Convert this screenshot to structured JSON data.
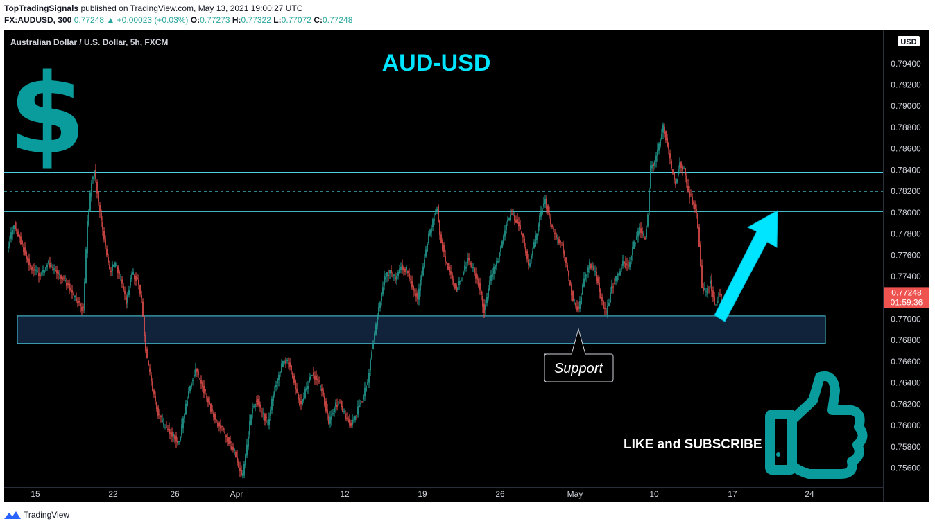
{
  "header": {
    "publisher": "TopTradingSignals",
    "published_text": "published on TradingView.com, May 13, 2021 19:00:27 UTC",
    "symbol": "FX:AUDUSD, 300",
    "last": "0.77248",
    "change_arrow": "▲",
    "change": "+0.00023 (+0.03%)",
    "o_label": "O:",
    "o": "0.77273",
    "h_label": "H:",
    "h": "0.77322",
    "l_label": "L:",
    "l": "0.77072",
    "c_label": "C:",
    "c": "0.77248"
  },
  "footer": {
    "brand": "TradingView"
  },
  "chart_data": {
    "type": "candlestick",
    "title": "AUD-USD",
    "series_label": "Australian Dollar / U.S. Dollar, 5h, FXCM",
    "currency": "USD",
    "price_tag": "0.77248",
    "countdown": "01:59:36",
    "ylim": [
      0.7548,
      0.7962
    ],
    "y_ticks": [
      0.756,
      0.758,
      0.76,
      0.762,
      0.764,
      0.766,
      0.768,
      0.77,
      0.772,
      0.774,
      0.776,
      0.778,
      0.78,
      0.782,
      0.784,
      0.786,
      0.788,
      0.79,
      0.792,
      0.794
    ],
    "y_tick_labels": [
      "0.75600",
      "0.75800",
      "0.76000",
      "0.76200",
      "0.76400",
      "0.76600",
      "0.76800",
      "0.77000",
      "0.77200",
      "0.77400",
      "0.77600",
      "0.77800",
      "0.78000",
      "0.78200",
      "0.78400",
      "0.78600",
      "0.78800",
      "0.79000",
      "0.79200",
      "0.79400"
    ],
    "x_ticks": [
      "15",
      "22",
      "26",
      "Apr",
      "12",
      "19",
      "26",
      "May",
      "10",
      "17",
      "24"
    ],
    "lines": {
      "upper_resistance": 0.7838,
      "mid_dashed": 0.782,
      "lower_resistance": 0.7801
    },
    "support_zone": [
      0.7677,
      0.7703
    ],
    "annotations": {
      "support_label": "Support",
      "cta": "LIKE and SUBSCRIBE"
    },
    "colors": {
      "up": "#26a69a",
      "down": "#ef5350",
      "title": "#00e5ff",
      "dollar": "#0a9c9c",
      "lines": "#4dd0e1",
      "arrow": "#00e5ff",
      "price_tag": "#ef5350"
    },
    "path_anchors": [
      [
        0,
        0.7765
      ],
      [
        5,
        0.779
      ],
      [
        10,
        0.7772
      ],
      [
        17,
        0.7748
      ],
      [
        24,
        0.7742
      ],
      [
        30,
        0.7752
      ],
      [
        38,
        0.774
      ],
      [
        44,
        0.7732
      ],
      [
        50,
        0.7718
      ],
      [
        55,
        0.7708
      ],
      [
        58,
        0.779
      ],
      [
        61,
        0.783
      ],
      [
        63,
        0.7842
      ],
      [
        66,
        0.7808
      ],
      [
        70,
        0.7775
      ],
      [
        74,
        0.7745
      ],
      [
        78,
        0.7752
      ],
      [
        82,
        0.7738
      ],
      [
        86,
        0.7716
      ],
      [
        90,
        0.7743
      ],
      [
        94,
        0.7736
      ],
      [
        97,
        0.7718
      ],
      [
        100,
        0.767
      ],
      [
        104,
        0.764
      ],
      [
        108,
        0.7615
      ],
      [
        112,
        0.7602
      ],
      [
        118,
        0.7592
      ],
      [
        124,
        0.7585
      ],
      [
        128,
        0.7612
      ],
      [
        132,
        0.7638
      ],
      [
        136,
        0.7652
      ],
      [
        140,
        0.764
      ],
      [
        144,
        0.7625
      ],
      [
        148,
        0.7612
      ],
      [
        152,
        0.7602
      ],
      [
        156,
        0.7594
      ],
      [
        160,
        0.7585
      ],
      [
        164,
        0.7575
      ],
      [
        167,
        0.756
      ],
      [
        170,
        0.7552
      ],
      [
        173,
        0.758
      ],
      [
        176,
        0.7612
      ],
      [
        180,
        0.7625
      ],
      [
        184,
        0.7612
      ],
      [
        188,
        0.7602
      ],
      [
        192,
        0.763
      ],
      [
        196,
        0.7648
      ],
      [
        200,
        0.7662
      ],
      [
        204,
        0.7656
      ],
      [
        208,
        0.7635
      ],
      [
        212,
        0.7618
      ],
      [
        216,
        0.7636
      ],
      [
        220,
        0.765
      ],
      [
        224,
        0.7642
      ],
      [
        228,
        0.7628
      ],
      [
        232,
        0.7602
      ],
      [
        236,
        0.7618
      ],
      [
        240,
        0.7622
      ],
      [
        244,
        0.7608
      ],
      [
        248,
        0.76
      ],
      [
        252,
        0.7612
      ],
      [
        256,
        0.7625
      ],
      [
        260,
        0.7642
      ],
      [
        264,
        0.768
      ],
      [
        268,
        0.771
      ],
      [
        272,
        0.7738
      ],
      [
        276,
        0.7745
      ],
      [
        280,
        0.7738
      ],
      [
        284,
        0.775
      ],
      [
        288,
        0.7746
      ],
      [
        292,
        0.773
      ],
      [
        296,
        0.772
      ],
      [
        300,
        0.775
      ],
      [
        304,
        0.7778
      ],
      [
        308,
        0.7796
      ],
      [
        310,
        0.7806
      ],
      [
        312,
        0.778
      ],
      [
        316,
        0.7755
      ],
      [
        320,
        0.774
      ],
      [
        324,
        0.7728
      ],
      [
        328,
        0.774
      ],
      [
        332,
        0.7756
      ],
      [
        336,
        0.7746
      ],
      [
        340,
        0.7733
      ],
      [
        344,
        0.7708
      ],
      [
        348,
        0.7735
      ],
      [
        352,
        0.775
      ],
      [
        356,
        0.7766
      ],
      [
        360,
        0.779
      ],
      [
        364,
        0.78
      ],
      [
        368,
        0.779
      ],
      [
        372,
        0.7775
      ],
      [
        376,
        0.775
      ],
      [
        380,
        0.777
      ],
      [
        384,
        0.7795
      ],
      [
        388,
        0.7812
      ],
      [
        392,
        0.779
      ],
      [
        396,
        0.7775
      ],
      [
        400,
        0.777
      ],
      [
        404,
        0.7745
      ],
      [
        408,
        0.7718
      ],
      [
        412,
        0.7708
      ],
      [
        416,
        0.7736
      ],
      [
        420,
        0.7752
      ],
      [
        424,
        0.7745
      ],
      [
        428,
        0.772
      ],
      [
        432,
        0.7705
      ],
      [
        436,
        0.773
      ],
      [
        440,
        0.774
      ],
      [
        444,
        0.7752
      ],
      [
        448,
        0.775
      ],
      [
        452,
        0.777
      ],
      [
        456,
        0.7785
      ],
      [
        460,
        0.7775
      ],
      [
        462,
        0.78
      ],
      [
        464,
        0.7842
      ],
      [
        467,
        0.7848
      ],
      [
        470,
        0.7862
      ],
      [
        473,
        0.788
      ],
      [
        476,
        0.7865
      ],
      [
        479,
        0.784
      ],
      [
        482,
        0.7828
      ],
      [
        485,
        0.7846
      ],
      [
        488,
        0.784
      ],
      [
        491,
        0.782
      ],
      [
        494,
        0.781
      ],
      [
        497,
        0.78
      ],
      [
        499,
        0.777
      ],
      [
        501,
        0.773
      ],
      [
        504,
        0.7725
      ],
      [
        507,
        0.7735
      ],
      [
        510,
        0.7712
      ],
      [
        513,
        0.7722
      ],
      [
        515,
        0.7725
      ]
    ]
  }
}
